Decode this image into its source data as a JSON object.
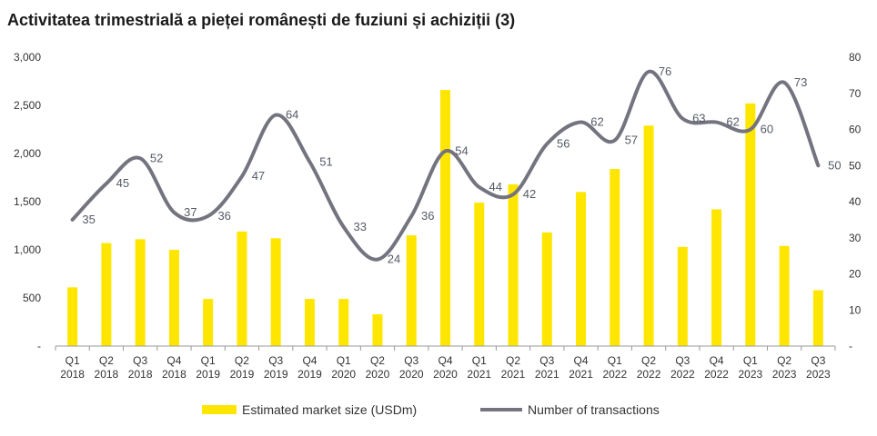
{
  "chart_data": {
    "type": "bar",
    "title": "Activitatea trimestrială a pieței românești de fuziuni și achiziții (3)",
    "categories": [
      [
        "Q1",
        "2018"
      ],
      [
        "Q2",
        "2018"
      ],
      [
        "Q3",
        "2018"
      ],
      [
        "Q4",
        "2018"
      ],
      [
        "Q1",
        "2019"
      ],
      [
        "Q2",
        "2019"
      ],
      [
        "Q3",
        "2019"
      ],
      [
        "Q4",
        "2019"
      ],
      [
        "Q1",
        "2020"
      ],
      [
        "Q2",
        "2020"
      ],
      [
        "Q3",
        "2020"
      ],
      [
        "Q4",
        "2020"
      ],
      [
        "Q1",
        "2021"
      ],
      [
        "Q2",
        "2021"
      ],
      [
        "Q3",
        "2021"
      ],
      [
        "Q4",
        "2021"
      ],
      [
        "Q1",
        "2022"
      ],
      [
        "Q2",
        "2022"
      ],
      [
        "Q3",
        "2022"
      ],
      [
        "Q4",
        "2022"
      ],
      [
        "Q1",
        "2023"
      ],
      [
        "Q2",
        "2023"
      ],
      [
        "Q3",
        "2023"
      ]
    ],
    "series": [
      {
        "name": "Estimated market size (USDm)",
        "type": "bar",
        "axis": "left",
        "color": "#FFE600",
        "values": [
          610,
          1070,
          1110,
          1000,
          490,
          1190,
          1120,
          490,
          490,
          330,
          1150,
          2660,
          1490,
          1680,
          1180,
          1600,
          1840,
          2290,
          1030,
          1420,
          2520,
          1040,
          580
        ]
      },
      {
        "name": "Number of transactions",
        "type": "line",
        "axis": "right",
        "color": "#747480",
        "smooth": true,
        "values": [
          35,
          45,
          52,
          37,
          36,
          47,
          64,
          51,
          33,
          24,
          36,
          54,
          44,
          42,
          56,
          62,
          57,
          76,
          63,
          62,
          60,
          73,
          50
        ]
      }
    ],
    "y_left": {
      "min": 0,
      "max": 3000,
      "ticks": [
        "-",
        "500",
        "1,000",
        "1,500",
        "2,000",
        "2,500",
        "3,000"
      ]
    },
    "y_right": {
      "min": 0,
      "max": 80,
      "ticks": [
        "-",
        "10",
        "20",
        "30",
        "40",
        "50",
        "60",
        "70",
        "80"
      ]
    },
    "grid": false,
    "legend": "bottom"
  }
}
